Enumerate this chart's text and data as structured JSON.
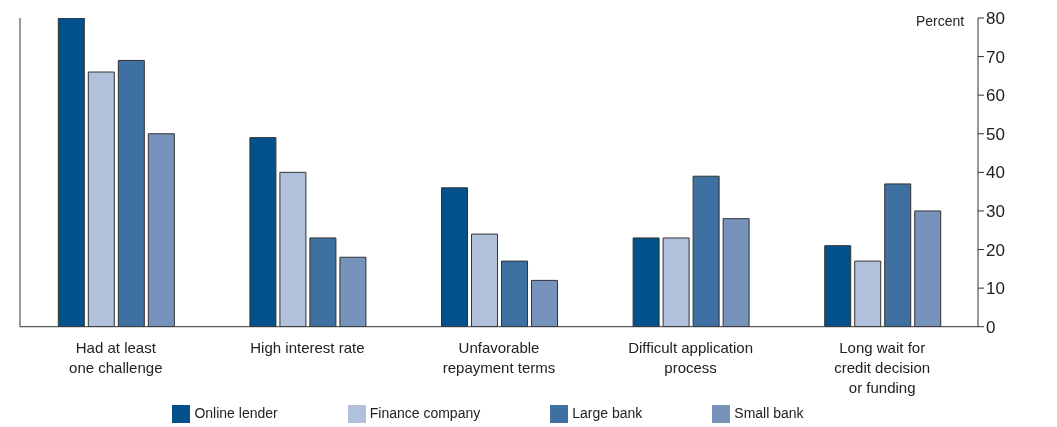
{
  "chart_data": {
    "type": "bar",
    "ylabel": "Percent",
    "categories": [
      "Had at least\none challenge",
      "High interest rate",
      "Unfavorable\nrepayment terms",
      "Difficult application\nprocess",
      "Long wait for\ncredit decision\nor funding"
    ],
    "series": [
      {
        "name": "Online lender",
        "color": "#03518a",
        "values": [
          80,
          49,
          36,
          23,
          21
        ]
      },
      {
        "name": "Finance company",
        "color": "#b1c0db",
        "values": [
          66,
          40,
          24,
          23,
          17
        ]
      },
      {
        "name": "Large bank",
        "color": "#3e70a1",
        "values": [
          69,
          23,
          17,
          39,
          37
        ]
      },
      {
        "name": "Small bank",
        "color": "#7793bc",
        "values": [
          50,
          18,
          12,
          28,
          30
        ]
      }
    ],
    "ylim": [
      0,
      80
    ],
    "yticks": [
      0,
      10,
      20,
      30,
      40,
      50,
      60,
      70,
      80
    ],
    "legend": "bottom"
  }
}
